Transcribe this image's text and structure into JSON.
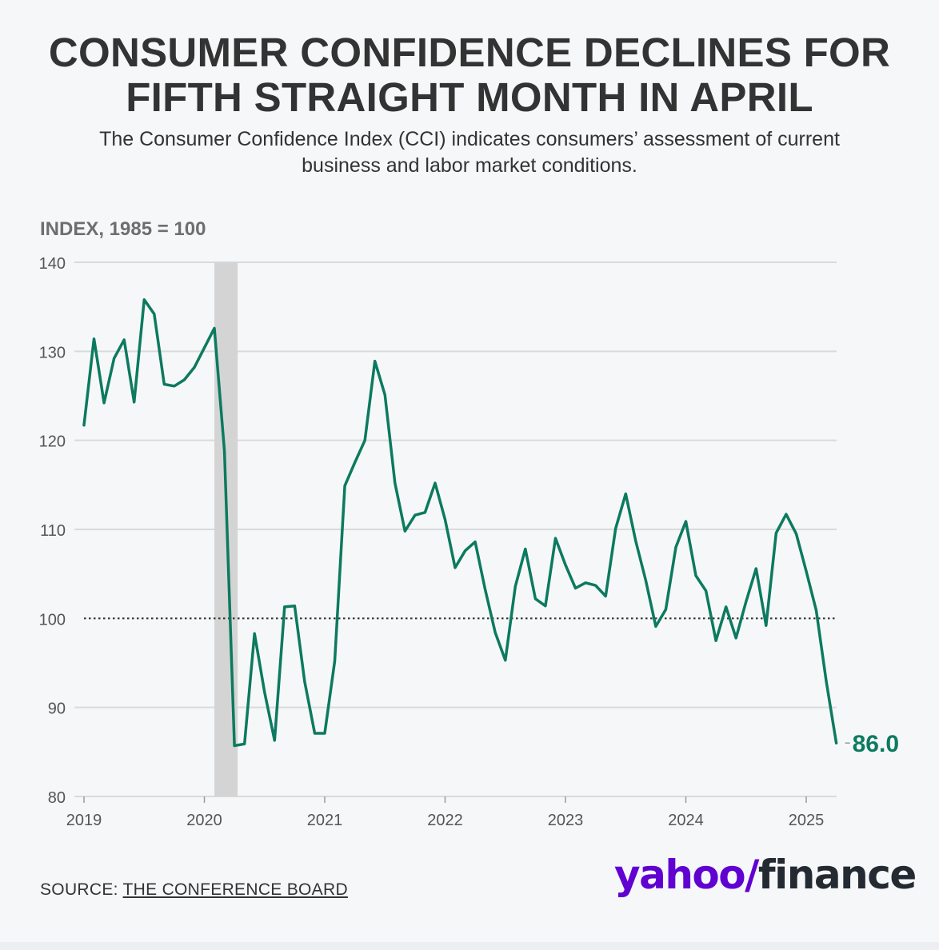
{
  "title_line1": "CONSUMER CONFIDENCE DECLINES FOR",
  "title_line2": "FIFTH STRAIGHT MONTH IN APRIL",
  "subtitle_line1": "The Consumer Confidence Index (CCI) indicates consumers’ assessment of current",
  "subtitle_line2": "business and labor market conditions.",
  "source_label": "SOURCE: ",
  "source_name": "THE CONFERENCE BOARD",
  "logo": {
    "part1": "yahoo",
    "slash": "/",
    "part2": "finance"
  },
  "colors": {
    "line": "#0c7a5f",
    "recession": "#d4d4d4",
    "grid": "#d9dadc",
    "logo": "#6001d2"
  },
  "chart_data": {
    "type": "line",
    "title": "CONSUMER CONFIDENCE DECLINES FOR FIFTH STRAIGHT MONTH IN APRIL",
    "ylabel": "INDEX, 1985 = 100",
    "xlabel": "",
    "ylim": [
      80,
      140
    ],
    "yticks": [
      80,
      90,
      100,
      110,
      120,
      130,
      140
    ],
    "xticks": [
      "2019",
      "2020",
      "2021",
      "2022",
      "2023",
      "2024",
      "2025"
    ],
    "reference_line": 100,
    "recession_shading": {
      "start": "2020-02",
      "end": "2020-04"
    },
    "end_label": "86.0",
    "grid": true,
    "series": [
      {
        "start": "2019-01",
        "frequency": "monthly",
        "values": [
          121.7,
          131.4,
          124.2,
          129.2,
          131.3,
          124.3,
          135.8,
          134.2,
          126.3,
          126.1,
          126.8,
          128.2,
          130.4,
          132.6,
          118.8,
          85.7,
          85.9,
          98.3,
          91.7,
          86.3,
          101.3,
          101.4,
          92.9,
          87.1,
          87.1,
          95.2,
          114.9,
          117.5,
          120.0,
          128.9,
          125.1,
          115.2,
          109.8,
          111.6,
          111.9,
          115.2,
          111.1,
          105.7,
          107.6,
          108.6,
          103.2,
          98.4,
          95.3,
          103.6,
          107.8,
          102.2,
          101.4,
          109.0,
          106.0,
          103.4,
          104.0,
          103.7,
          102.5,
          110.1,
          114.0,
          108.7,
          104.3,
          99.1,
          101.0,
          108.0,
          110.9,
          104.8,
          103.1,
          97.5,
          101.3,
          97.8,
          101.9,
          105.6,
          99.2,
          109.6,
          111.7,
          109.5,
          105.3,
          100.9,
          92.9,
          86.0
        ]
      }
    ]
  }
}
